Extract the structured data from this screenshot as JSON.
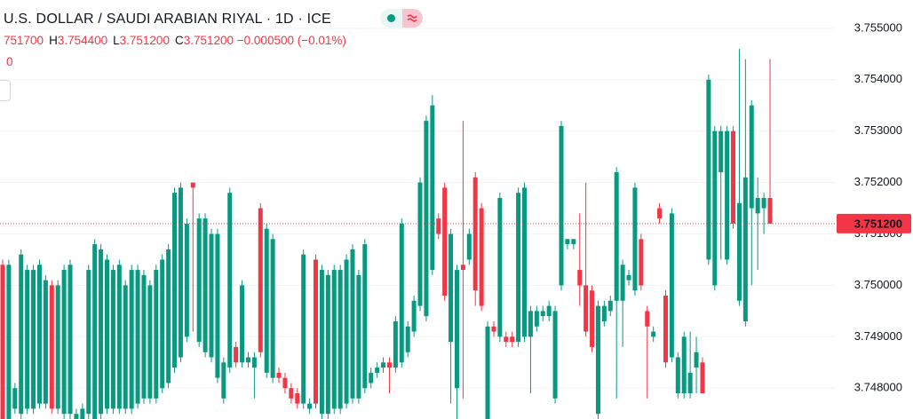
{
  "chart_data": {
    "type": "candlestick",
    "title": "U.S. DOLLAR / SAUDI ARABIAN RIYAL · 1D · ICE",
    "ohlc_open": "751700",
    "ohlc": [
      {
        "key": "H",
        "value": "3.754400"
      },
      {
        "key": "L",
        "value": "3.751200"
      },
      {
        "key": "C",
        "value": "3.751200"
      }
    ],
    "change": "−0.000500 (−0.01%)",
    "volume": "0",
    "last_price": {
      "value": 3.7512,
      "label": "3.751200"
    },
    "up_color": "#089981",
    "down_color": "#f23645",
    "ylim": [
      3.7474,
      3.75555
    ],
    "yticks": [
      {
        "value": 3.748,
        "label": "3.748000"
      },
      {
        "value": 3.749,
        "label": "3.749000"
      },
      {
        "value": 3.75,
        "label": "3.750000"
      },
      {
        "value": 3.751,
        "label": "3.751000"
      },
      {
        "value": 3.752,
        "label": "3.752000"
      },
      {
        "value": 3.753,
        "label": "3.753000"
      },
      {
        "value": 3.754,
        "label": "3.754000"
      },
      {
        "value": 3.755,
        "label": "3.755000"
      }
    ],
    "grid": true,
    "candles": [
      [
        3.7504,
        3.7505,
        3.7474,
        3.7474
      ],
      [
        3.7474,
        3.7505,
        3.7474,
        3.7504
      ],
      [
        3.7476,
        3.7481,
        3.7475,
        3.748
      ],
      [
        3.7475,
        3.7507,
        3.7474,
        3.7506
      ],
      [
        3.7476,
        3.7504,
        3.7475,
        3.7503
      ],
      [
        3.7476,
        3.7504,
        3.7475,
        3.7503
      ],
      [
        3.7477,
        3.7505,
        3.7476,
        3.7504
      ],
      [
        3.7477,
        3.7502,
        3.7476,
        3.7501
      ],
      [
        3.75,
        3.7501,
        3.7475,
        3.7476
      ],
      [
        3.7476,
        3.7501,
        3.7475,
        3.75
      ],
      [
        3.7475,
        3.7504,
        3.7474,
        3.7503
      ],
      [
        3.7475,
        3.7505,
        3.7474,
        3.7504
      ],
      [
        3.7474,
        3.7476,
        3.7474,
        3.7475
      ],
      [
        3.7474,
        3.7477,
        3.7474,
        3.7476
      ],
      [
        3.7475,
        3.7504,
        3.7474,
        3.7503
      ],
      [
        3.7474,
        3.7509,
        3.7474,
        3.7508
      ],
      [
        3.7475,
        3.7508,
        3.7474,
        3.7507
      ],
      [
        3.7476,
        3.7506,
        3.7475,
        3.7505
      ],
      [
        3.7476,
        3.7504,
        3.7475,
        3.7503
      ],
      [
        3.7476,
        3.7505,
        3.7475,
        3.7504
      ],
      [
        3.7476,
        3.7501,
        3.7475,
        3.75
      ],
      [
        3.7476,
        3.7504,
        3.7475,
        3.7503
      ],
      [
        3.7477,
        3.7504,
        3.7476,
        3.7503
      ],
      [
        3.7478,
        3.7503,
        3.7477,
        3.7502
      ],
      [
        3.7478,
        3.7501,
        3.7477,
        3.75
      ],
      [
        3.7478,
        3.7504,
        3.7477,
        3.7503
      ],
      [
        3.748,
        3.7506,
        3.7479,
        3.7505
      ],
      [
        3.7481,
        3.7508,
        3.748,
        3.7507
      ],
      [
        3.7484,
        3.7519,
        3.7483,
        3.7518
      ],
      [
        3.7486,
        3.752,
        3.7485,
        3.7519
      ],
      [
        3.749,
        3.7513,
        3.7489,
        3.7512
      ],
      [
        3.752,
        3.752,
        3.7491,
        3.7519
      ],
      [
        3.7489,
        3.7514,
        3.7488,
        3.7513
      ],
      [
        3.7487,
        3.7514,
        3.7486,
        3.7513
      ],
      [
        3.7486,
        3.7511,
        3.7485,
        3.751
      ],
      [
        3.7482,
        3.7511,
        3.7481,
        3.751
      ],
      [
        3.7478,
        3.7486,
        3.7477,
        3.7485
      ],
      [
        3.7484,
        3.7519,
        3.7483,
        3.7518
      ],
      [
        3.7488,
        3.7489,
        3.7484,
        3.7485
      ],
      [
        3.7485,
        3.7501,
        3.7484,
        3.75
      ],
      [
        3.7485,
        3.7487,
        3.7484,
        3.7486
      ],
      [
        3.7484,
        3.7487,
        3.7478,
        3.7486
      ],
      [
        3.7515,
        3.7516,
        3.7486,
        3.7487
      ],
      [
        3.7483,
        3.7512,
        3.7482,
        3.7511
      ],
      [
        3.7482,
        3.751,
        3.7481,
        3.7509
      ],
      [
        3.7483,
        3.7484,
        3.7481,
        3.7482
      ],
      [
        3.7482,
        3.7483,
        3.7479,
        3.748
      ],
      [
        3.748,
        3.7481,
        3.7477,
        3.7478
      ],
      [
        3.7479,
        3.748,
        3.7476,
        3.7477
      ],
      [
        3.7477,
        3.7507,
        3.7476,
        3.7506
      ],
      [
        3.7476,
        3.7478,
        3.7475,
        3.7477
      ],
      [
        3.7505,
        3.7506,
        3.7476,
        3.7477
      ],
      [
        3.7475,
        3.7504,
        3.7474,
        3.7503
      ],
      [
        3.7475,
        3.7503,
        3.7474,
        3.7502
      ],
      [
        3.7476,
        3.7504,
        3.7475,
        3.7503
      ],
      [
        3.7476,
        3.7504,
        3.7475,
        3.7503
      ],
      [
        3.7477,
        3.7506,
        3.7476,
        3.7505
      ],
      [
        3.7478,
        3.7508,
        3.7477,
        3.7507
      ],
      [
        3.7478,
        3.7503,
        3.7477,
        3.7502
      ],
      [
        3.748,
        3.7509,
        3.7479,
        3.7508
      ],
      [
        3.7481,
        3.7484,
        3.748,
        3.7483
      ],
      [
        3.7483,
        3.7485,
        3.7482,
        3.7484
      ],
      [
        3.7484,
        3.7486,
        3.7483,
        3.7485
      ],
      [
        3.7485,
        3.7486,
        3.7479,
        3.7484
      ],
      [
        3.7484,
        3.7494,
        3.7483,
        3.7493
      ],
      [
        3.7485,
        3.7513,
        3.7484,
        3.7512
      ],
      [
        3.7487,
        3.7493,
        3.7486,
        3.7492
      ],
      [
        3.7491,
        3.7498,
        3.749,
        3.7497
      ],
      [
        3.7496,
        3.7521,
        3.7495,
        3.752
      ],
      [
        3.7494,
        3.7533,
        3.7493,
        3.7532
      ],
      [
        3.7503,
        3.7537,
        3.7502,
        3.7535
      ],
      [
        3.7513,
        3.7514,
        3.7509,
        3.751
      ],
      [
        3.7519,
        3.752,
        3.7497,
        3.7498
      ],
      [
        3.7489,
        3.7511,
        3.7477,
        3.751
      ],
      [
        3.748,
        3.7504,
        3.7474,
        3.7503
      ],
      [
        3.7504,
        3.7532,
        3.7478,
        3.7503
      ],
      [
        3.7505,
        3.7511,
        3.7504,
        3.751
      ],
      [
        3.7521,
        3.7522,
        3.7496,
        3.7499
      ],
      [
        3.7515,
        3.7516,
        3.7495,
        3.7496
      ],
      [
        3.7474,
        3.7493,
        3.7474,
        3.7492
      ],
      [
        3.7492,
        3.7493,
        3.749,
        3.7491
      ],
      [
        3.749,
        3.7518,
        3.7489,
        3.7517
      ],
      [
        3.749,
        3.7491,
        3.7488,
        3.7489
      ],
      [
        3.749,
        3.7491,
        3.7488,
        3.7489
      ],
      [
        3.7489,
        3.7519,
        3.7488,
        3.7518
      ],
      [
        3.749,
        3.752,
        3.7489,
        3.7519
      ],
      [
        3.749,
        3.7496,
        3.7479,
        3.7495
      ],
      [
        3.7492,
        3.7496,
        3.7491,
        3.7495
      ],
      [
        3.7494,
        3.7496,
        3.7493,
        3.7495
      ],
      [
        3.7494,
        3.7497,
        3.7493,
        3.7496
      ],
      [
        3.7478,
        3.7496,
        3.7477,
        3.7495
      ],
      [
        3.75,
        3.7532,
        3.7499,
        3.7531
      ],
      [
        3.7508,
        3.7509,
        3.7507,
        3.7509
      ],
      [
        3.7508,
        3.7509,
        3.7507,
        3.7509
      ],
      [
        3.7503,
        3.7514,
        3.7496,
        3.75
      ],
      [
        3.75,
        3.752,
        3.749,
        3.7491
      ],
      [
        3.7499,
        3.75,
        3.7487,
        3.7488
      ],
      [
        3.7475,
        3.7497,
        3.7474,
        3.7496
      ],
      [
        3.7493,
        3.7497,
        3.7492,
        3.7496
      ],
      [
        3.7495,
        3.7498,
        3.7494,
        3.7497
      ],
      [
        3.7497,
        3.7523,
        3.7478,
        3.7522
      ],
      [
        3.7497,
        3.7505,
        3.7488,
        3.7504
      ],
      [
        3.7501,
        3.7503,
        3.75,
        3.7502
      ],
      [
        3.7499,
        3.752,
        3.7498,
        3.7519
      ],
      [
        3.7509,
        3.751,
        3.7499,
        3.75
      ],
      [
        3.7495,
        3.7496,
        3.7478,
        3.7492
      ],
      [
        3.749,
        3.7492,
        3.7489,
        3.7491
      ],
      [
        3.7515,
        3.7516,
        3.7512,
        3.7513
      ],
      [
        3.7498,
        3.7499,
        3.7484,
        3.7485
      ],
      [
        3.7486,
        3.7515,
        3.7485,
        3.7514
      ],
      [
        3.7479,
        3.7487,
        3.7478,
        3.7486
      ],
      [
        3.7479,
        3.7491,
        3.7478,
        3.749
      ],
      [
        3.7479,
        3.7491,
        3.7478,
        3.7483
      ],
      [
        3.7484,
        3.749,
        3.7479,
        3.7487
      ],
      [
        3.7485,
        3.7486,
        3.7479,
        3.7479
      ],
      [
        3.7505,
        3.7541,
        3.7504,
        3.754
      ],
      [
        3.75,
        3.7531,
        3.7499,
        3.753
      ],
      [
        3.7522,
        3.7531,
        3.7505,
        3.753
      ],
      [
        3.7505,
        3.7531,
        3.7504,
        3.753
      ],
      [
        3.753,
        3.7531,
        3.7511,
        3.7512
      ],
      [
        3.7497,
        3.7546,
        3.7496,
        3.7516
      ],
      [
        3.7493,
        3.7544,
        3.7492,
        3.7521
      ],
      [
        3.7515,
        3.7536,
        3.75,
        3.7535
      ],
      [
        3.7514,
        3.7521,
        3.7503,
        3.7517
      ],
      [
        3.7515,
        3.7518,
        3.751,
        3.7517
      ],
      [
        3.7517,
        3.7544,
        3.7512,
        3.7512
      ]
    ]
  }
}
